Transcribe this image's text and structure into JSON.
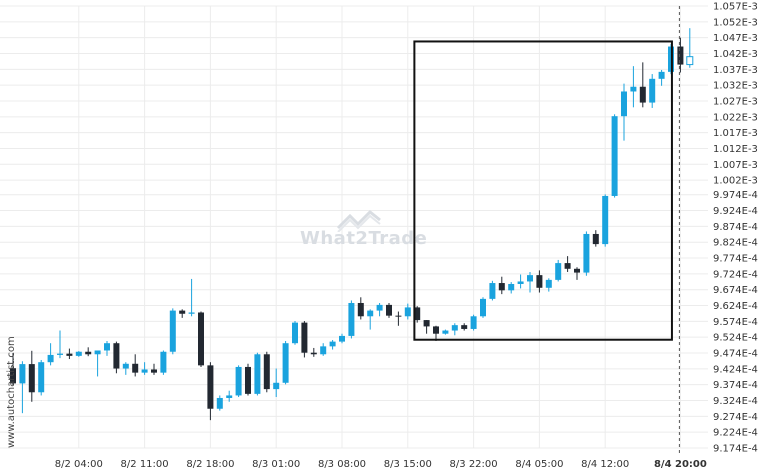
{
  "watermark": {
    "side_text": "www.autochartist.com",
    "brand_text": "What2Trade"
  },
  "colors": {
    "up": "#1aa3de",
    "down": "#222831",
    "pattern_box": "#111111",
    "grid": "#ececec",
    "marker": "#555555"
  },
  "chart_data": {
    "type": "candlestick",
    "y_axis_side": "right",
    "ylim": [
      0.0009174,
      0.001057
    ],
    "y_ticks": [
      "1.057E-3",
      "1.052E-3",
      "1.047E-3",
      "1.042E-3",
      "1.037E-3",
      "1.032E-3",
      "1.027E-3",
      "1.022E-3",
      "1.017E-3",
      "1.012E-3",
      "1.007E-3",
      "1.002E-3",
      "9.974E-4",
      "9.924E-4",
      "9.874E-4",
      "9.824E-4",
      "9.774E-4",
      "9.724E-4",
      "9.674E-4",
      "9.624E-4",
      "9.574E-4",
      "9.524E-4",
      "9.474E-4",
      "9.424E-4",
      "9.374E-4",
      "9.324E-4",
      "9.274E-4",
      "9.224E-4",
      "9.174E-4"
    ],
    "y_tick_values": [
      0.001057,
      0.001052,
      0.001047,
      0.001042,
      0.001037,
      0.001032,
      0.001027,
      0.001022,
      0.001017,
      0.001012,
      0.001007,
      0.001002,
      0.0009974,
      0.0009924,
      0.0009874,
      0.0009824,
      0.0009774,
      0.0009724,
      0.0009674,
      0.0009624,
      0.0009574,
      0.0009524,
      0.0009474,
      0.0009424,
      0.0009374,
      0.0009324,
      0.0009274,
      0.0009224,
      0.0009174
    ],
    "x_ticks": [
      {
        "label": "8/2 04:00",
        "index": 7,
        "bold": false
      },
      {
        "label": "8/2 11:00",
        "index": 14,
        "bold": false
      },
      {
        "label": "8/2 18:00",
        "index": 21,
        "bold": false
      },
      {
        "label": "8/3 01:00",
        "index": 28,
        "bold": false
      },
      {
        "label": "8/3 08:00",
        "index": 35,
        "bold": false
      },
      {
        "label": "8/3 15:00",
        "index": 42,
        "bold": false
      },
      {
        "label": "8/3 22:00",
        "index": 49,
        "bold": false
      },
      {
        "label": "8/4 05:00",
        "index": 56,
        "bold": false
      },
      {
        "label": "8/4 12:00",
        "index": 63,
        "bold": false
      },
      {
        "label": "8/4 20:00",
        "index": 71,
        "bold": true
      }
    ],
    "candles": [
      {
        "o": 0.0009426,
        "h": 0.0009474,
        "l": 0.0009372,
        "c": 0.0009378
      },
      {
        "o": 0.0009378,
        "h": 0.0009448,
        "l": 0.0009284,
        "c": 0.0009439
      },
      {
        "o": 0.0009439,
        "h": 0.0009481,
        "l": 0.000932,
        "c": 0.000935
      },
      {
        "o": 0.000935,
        "h": 0.0009452,
        "l": 0.000934,
        "c": 0.0009445
      },
      {
        "o": 0.0009445,
        "h": 0.0009505,
        "l": 0.0009435,
        "c": 0.0009468
      },
      {
        "o": 0.0009468,
        "h": 0.0009545,
        "l": 0.0009458,
        "c": 0.0009472
      },
      {
        "o": 0.0009472,
        "h": 0.0009488,
        "l": 0.0009455,
        "c": 0.0009465
      },
      {
        "o": 0.0009465,
        "h": 0.000948,
        "l": 0.0009462,
        "c": 0.0009478
      },
      {
        "o": 0.0009478,
        "h": 0.0009492,
        "l": 0.0009464,
        "c": 0.000947
      },
      {
        "o": 0.000947,
        "h": 0.0009482,
        "l": 0.00094,
        "c": 0.0009482
      },
      {
        "o": 0.0009482,
        "h": 0.0009512,
        "l": 0.0009465,
        "c": 0.0009505
      },
      {
        "o": 0.0009505,
        "h": 0.000951,
        "l": 0.000941,
        "c": 0.0009425
      },
      {
        "o": 0.0009425,
        "h": 0.0009445,
        "l": 0.0009405,
        "c": 0.000944
      },
      {
        "o": 0.000944,
        "h": 0.000947,
        "l": 0.00094,
        "c": 0.0009412
      },
      {
        "o": 0.0009412,
        "h": 0.0009445,
        "l": 0.0009405,
        "c": 0.0009422
      },
      {
        "o": 0.0009422,
        "h": 0.000944,
        "l": 0.0009405,
        "c": 0.0009412
      },
      {
        "o": 0.0009412,
        "h": 0.0009482,
        "l": 0.0009405,
        "c": 0.0009478
      },
      {
        "o": 0.0009478,
        "h": 0.0009615,
        "l": 0.000947,
        "c": 0.0009608
      },
      {
        "o": 0.0009608,
        "h": 0.0009612,
        "l": 0.0009585,
        "c": 0.0009598
      },
      {
        "o": 0.0009598,
        "h": 0.0009708,
        "l": 0.000959,
        "c": 0.0009602
      },
      {
        "o": 0.0009602,
        "h": 0.0009605,
        "l": 0.000943,
        "c": 0.0009435
      },
      {
        "o": 0.0009435,
        "h": 0.0009445,
        "l": 0.0009262,
        "c": 0.0009298
      },
      {
        "o": 0.0009298,
        "h": 0.000934,
        "l": 0.0009292,
        "c": 0.0009332
      },
      {
        "o": 0.0009332,
        "h": 0.0009355,
        "l": 0.000932,
        "c": 0.000934
      },
      {
        "o": 0.000934,
        "h": 0.0009435,
        "l": 0.0009335,
        "c": 0.000943
      },
      {
        "o": 0.000943,
        "h": 0.000944,
        "l": 0.000934,
        "c": 0.0009345
      },
      {
        "o": 0.0009345,
        "h": 0.0009475,
        "l": 0.000934,
        "c": 0.000947
      },
      {
        "o": 0.000947,
        "h": 0.0009478,
        "l": 0.000935,
        "c": 0.000936
      },
      {
        "o": 0.000936,
        "h": 0.0009425,
        "l": 0.0009335,
        "c": 0.000938
      },
      {
        "o": 0.000938,
        "h": 0.0009512,
        "l": 0.0009375,
        "c": 0.0009505
      },
      {
        "o": 0.0009505,
        "h": 0.0009575,
        "l": 0.00095,
        "c": 0.000957
      },
      {
        "o": 0.000957,
        "h": 0.0009575,
        "l": 0.000946,
        "c": 0.0009475
      },
      {
        "o": 0.0009475,
        "h": 0.000949,
        "l": 0.0009462,
        "c": 0.000947
      },
      {
        "o": 0.000947,
        "h": 0.0009505,
        "l": 0.0009465,
        "c": 0.0009495
      },
      {
        "o": 0.0009495,
        "h": 0.0009515,
        "l": 0.0009485,
        "c": 0.000951
      },
      {
        "o": 0.000951,
        "h": 0.0009535,
        "l": 0.0009505,
        "c": 0.0009528
      },
      {
        "o": 0.0009528,
        "h": 0.000964,
        "l": 0.000952,
        "c": 0.0009632
      },
      {
        "o": 0.0009632,
        "h": 0.000965,
        "l": 0.000958,
        "c": 0.000959
      },
      {
        "o": 0.000959,
        "h": 0.0009612,
        "l": 0.0009548,
        "c": 0.0009608
      },
      {
        "o": 0.0009608,
        "h": 0.0009632,
        "l": 0.000959,
        "c": 0.0009626
      },
      {
        "o": 0.0009626,
        "h": 0.0009632,
        "l": 0.0009585,
        "c": 0.0009592
      },
      {
        "o": 0.0009592,
        "h": 0.0009605,
        "l": 0.000956,
        "c": 0.000959
      },
      {
        "o": 0.000959,
        "h": 0.000963,
        "l": 0.000958,
        "c": 0.0009618
      },
      {
        "o": 0.0009618,
        "h": 0.0009622,
        "l": 0.000957,
        "c": 0.0009578
      },
      {
        "o": 0.0009578,
        "h": 0.0009578,
        "l": 0.0009535,
        "c": 0.0009558
      },
      {
        "o": 0.0009558,
        "h": 0.000956,
        "l": 0.0009512,
        "c": 0.0009535
      },
      {
        "o": 0.0009535,
        "h": 0.0009548,
        "l": 0.0009532,
        "c": 0.0009545
      },
      {
        "o": 0.0009545,
        "h": 0.0009568,
        "l": 0.000953,
        "c": 0.0009562
      },
      {
        "o": 0.0009562,
        "h": 0.0009568,
        "l": 0.0009545,
        "c": 0.000955
      },
      {
        "o": 0.000955,
        "h": 0.0009595,
        "l": 0.0009545,
        "c": 0.000959
      },
      {
        "o": 0.000959,
        "h": 0.000965,
        "l": 0.0009585,
        "c": 0.0009645
      },
      {
        "o": 0.0009645,
        "h": 0.0009702,
        "l": 0.000964,
        "c": 0.0009695
      },
      {
        "o": 0.0009695,
        "h": 0.0009715,
        "l": 0.000966,
        "c": 0.0009672
      },
      {
        "o": 0.0009672,
        "h": 0.0009698,
        "l": 0.0009662,
        "c": 0.0009692
      },
      {
        "o": 0.0009692,
        "h": 0.0009722,
        "l": 0.0009678,
        "c": 0.00097
      },
      {
        "o": 0.00097,
        "h": 0.000973,
        "l": 0.0009665,
        "c": 0.000972
      },
      {
        "o": 0.000972,
        "h": 0.0009735,
        "l": 0.0009665,
        "c": 0.000968
      },
      {
        "o": 0.000968,
        "h": 0.000971,
        "l": 0.0009668,
        "c": 0.0009705
      },
      {
        "o": 0.0009705,
        "h": 0.0009768,
        "l": 0.00097,
        "c": 0.0009758
      },
      {
        "o": 0.0009758,
        "h": 0.000978,
        "l": 0.000973,
        "c": 0.000974
      },
      {
        "o": 0.000974,
        "h": 0.0009745,
        "l": 0.0009705,
        "c": 0.0009728
      },
      {
        "o": 0.0009728,
        "h": 0.0009858,
        "l": 0.0009718,
        "c": 0.000985
      },
      {
        "o": 0.000985,
        "h": 0.0009862,
        "l": 0.000981,
        "c": 0.0009818
      },
      {
        "o": 0.0009818,
        "h": 0.0009975,
        "l": 0.000981,
        "c": 0.000997
      },
      {
        "o": 0.000997,
        "h": 0.0010228,
        "l": 0.0009965,
        "c": 0.0010222
      },
      {
        "o": 0.0010222,
        "h": 0.0010325,
        "l": 0.0010145,
        "c": 0.00103
      },
      {
        "o": 0.00103,
        "h": 0.001038,
        "l": 0.001025,
        "c": 0.0010315
      },
      {
        "o": 0.0010315,
        "h": 0.0010392,
        "l": 0.001025,
        "c": 0.0010265
      },
      {
        "o": 0.0010265,
        "h": 0.0010355,
        "l": 0.0010248,
        "c": 0.001034
      },
      {
        "o": 0.001034,
        "h": 0.0010368,
        "l": 0.0010318,
        "c": 0.0010362
      },
      {
        "o": 0.0010362,
        "h": 0.001045,
        "l": 0.0010355,
        "c": 0.0010442
      },
      {
        "o": 0.0010442,
        "h": 0.001047,
        "l": 0.001036,
        "c": 0.0010385
      },
      {
        "o": 0.0010385,
        "h": 0.00105,
        "l": 0.0010375,
        "c": 0.001041,
        "hollow": true
      }
    ],
    "pattern_box": {
      "start_index": 42.7,
      "end_index": 70.1,
      "low": 0.0009516,
      "high": 0.0010458
    },
    "marker_index": 71
  }
}
